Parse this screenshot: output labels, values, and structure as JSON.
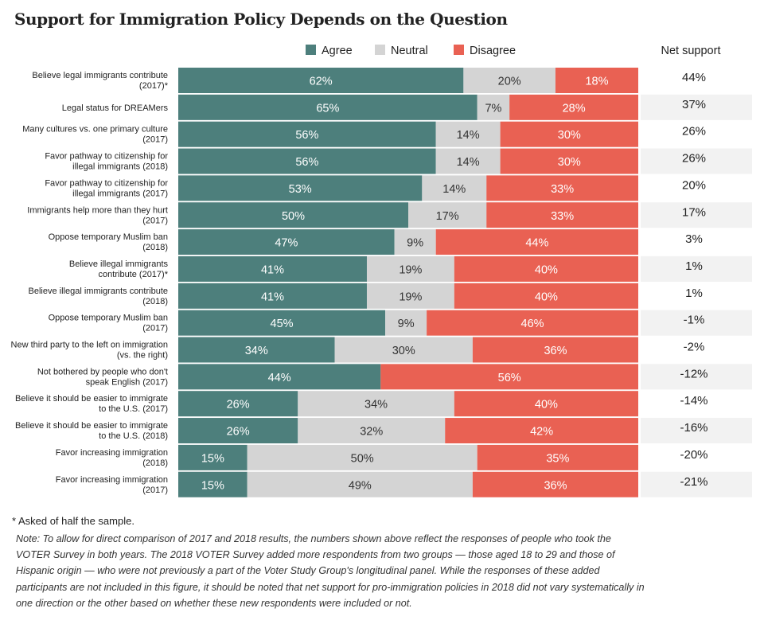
{
  "title": "Support for Immigration Policy Depends on the Question",
  "legend": {
    "agree": "Agree",
    "neutral": "Neutral",
    "disagree": "Disagree",
    "net_header": "Net support"
  },
  "colors": {
    "agree": "#4d7f7c",
    "neutral": "#d4d4d4",
    "disagree": "#e96153",
    "net_band": "#f2f2f2"
  },
  "chart_data": {
    "type": "bar",
    "stacked": true,
    "orientation": "horizontal",
    "categories": [
      [
        "Believe legal immigrants contribute",
        "(2017)*"
      ],
      [
        "Legal status for DREAMers"
      ],
      [
        "Many cultures vs. one primary culture",
        "(2017)"
      ],
      [
        "Favor pathway to citizenship for",
        "illegal immigrants (2018)"
      ],
      [
        "Favor pathway to citizenship for",
        "illegal immigrants (2017)"
      ],
      [
        "Immigrants help more than they hurt",
        "(2017)"
      ],
      [
        "Oppose temporary Muslim ban",
        "(2018)"
      ],
      [
        "Believe illegal immigrants",
        "contribute (2017)*"
      ],
      [
        "Believe illegal immigrants contribute",
        "(2018)"
      ],
      [
        "Oppose temporary Muslim ban",
        "(2017)"
      ],
      [
        "New third party to the left on immigration",
        "(vs. the right)"
      ],
      [
        "Not bothered by people who don't",
        "speak English (2017)"
      ],
      [
        "Believe it should be easier to immigrate",
        "to the U.S. (2017)"
      ],
      [
        "Believe it should be easier to immigrate",
        "to the U.S. (2018)"
      ],
      [
        "Favor increasing immigration",
        "(2018)"
      ],
      [
        "Favor increasing immigration",
        "(2017)"
      ]
    ],
    "series": [
      {
        "name": "Agree",
        "values": [
          62,
          65,
          56,
          56,
          53,
          50,
          47,
          41,
          41,
          45,
          34,
          44,
          26,
          26,
          15,
          15
        ]
      },
      {
        "name": "Neutral",
        "values": [
          20,
          7,
          14,
          14,
          14,
          17,
          9,
          19,
          19,
          9,
          30,
          0,
          34,
          32,
          50,
          49
        ]
      },
      {
        "name": "Disagree",
        "values": [
          18,
          28,
          30,
          30,
          33,
          33,
          44,
          40,
          40,
          46,
          36,
          56,
          40,
          42,
          35,
          36
        ]
      }
    ],
    "net_support": [
      "44%",
      "37%",
      "26%",
      "26%",
      "20%",
      "17%",
      "3%",
      "1%",
      "1%",
      "-1%",
      "-2%",
      "-12%",
      "-14%",
      "-16%",
      "-20%",
      "-21%"
    ],
    "xlim": [
      0,
      100
    ],
    "legend_position": "top",
    "grid": false
  },
  "footnote": "* Asked of half the sample.",
  "note": "Note: To allow for direct comparison of 2017 and 2018 results, the numbers shown above reflect the responses of people who took the VOTER Survey in both years. The 2018 VOTER Survey added more respondents from two groups — those aged 18 to 29 and those of Hispanic origin — who were not previously a part of the Voter Study Group's longitudinal panel. While the responses of these added participants are not included in this figure, it should be noted that net support for pro-immigration policies in 2018 did not vary systematically in one direction or the other based on whether these new respondents were included or not."
}
